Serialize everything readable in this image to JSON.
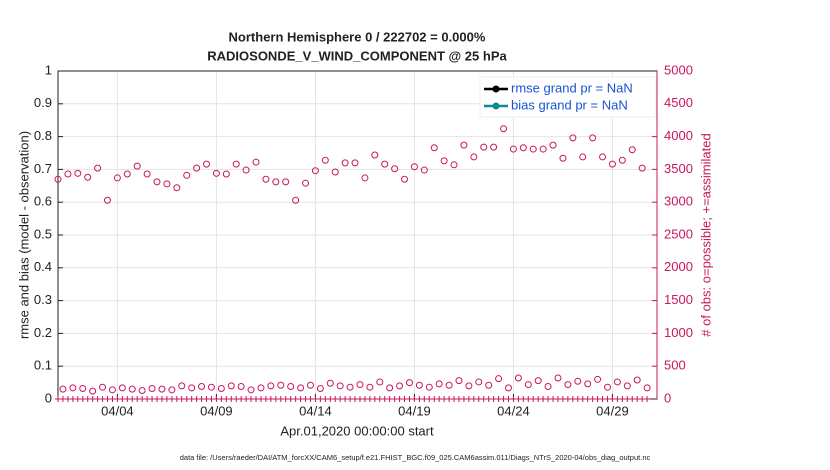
{
  "chart_data": {
    "type": "scatter",
    "title": "Northern Hemisphere 0 / 222702 = 0.000%",
    "subtitle": "RADIOSONDE_V_WIND_COMPONENT @ 25 hPa",
    "ylabel": "rmse and bias (model - observation)",
    "y2label": "# of obs: o=possible; +=assimilated",
    "xlabel": "Apr.01,2020 00:00:00 start",
    "footnote": "data file: /Users/raeder/DAI/ATM_forcXX/CAM6_setup/f.e21.FHIST_BGC.f09_025.CAM6assim.011/Diags_NTrS_2020-04/obs_diag_output.nc",
    "legend": [
      {
        "label": "rmse grand pr = NaN",
        "color": "#000000"
      },
      {
        "label": "bias grand pr = NaN",
        "color": "#108a8a"
      }
    ],
    "grid": true,
    "xlim": [
      0,
      30.25
    ],
    "xticks": [
      {
        "value": 3,
        "label": "04/04"
      },
      {
        "value": 8,
        "label": "04/09"
      },
      {
        "value": 13,
        "label": "04/14"
      },
      {
        "value": 18,
        "label": "04/19"
      },
      {
        "value": 23,
        "label": "04/24"
      },
      {
        "value": 28,
        "label": "04/29"
      }
    ],
    "ylim": [
      0,
      1
    ],
    "yticks": [
      0,
      0.1,
      0.2,
      0.3,
      0.4,
      0.5,
      0.6,
      0.7,
      0.8,
      0.9,
      1
    ],
    "y2lim": [
      0,
      5000
    ],
    "y2ticks": [
      0,
      500,
      1000,
      1500,
      2000,
      2500,
      3000,
      3500,
      4000,
      4500,
      5000
    ],
    "y2color": "#c8175d",
    "x": [
      0,
      0.25,
      0.5,
      0.75,
      1,
      1.25,
      1.5,
      1.75,
      2,
      2.25,
      2.5,
      2.75,
      3,
      3.25,
      3.5,
      3.75,
      4,
      4.25,
      4.5,
      4.75,
      5,
      5.25,
      5.5,
      5.75,
      6,
      6.25,
      6.5,
      6.75,
      7,
      7.25,
      7.5,
      7.75,
      8,
      8.25,
      8.5,
      8.75,
      9,
      9.25,
      9.5,
      9.75,
      10,
      10.25,
      10.5,
      10.75,
      11,
      11.25,
      11.5,
      11.75,
      12,
      12.25,
      12.5,
      12.75,
      13,
      13.25,
      13.5,
      13.75,
      14,
      14.25,
      14.5,
      14.75,
      15,
      15.25,
      15.5,
      15.75,
      16,
      16.25,
      16.5,
      16.75,
      17,
      17.25,
      17.5,
      17.75,
      18,
      18.25,
      18.5,
      18.75,
      19,
      19.25,
      19.5,
      19.75,
      20,
      20.25,
      20.5,
      20.75,
      21,
      21.25,
      21.5,
      21.75,
      22,
      22.25,
      22.5,
      22.75,
      23,
      23.25,
      23.5,
      23.75,
      24,
      24.25,
      24.5,
      24.75,
      25,
      25.25,
      25.5,
      25.75,
      26,
      26.25,
      26.5,
      26.75,
      27,
      27.25,
      27.5,
      27.75,
      28,
      28.25,
      28.5,
      28.75,
      29,
      29.25,
      29.5,
      29.75
    ],
    "series": [
      {
        "marker": "circle",
        "color": "#c8175d",
        "axis": "y2",
        "values": [
          3350,
          150,
          3430,
          170,
          3440,
          160,
          3380,
          120,
          3520,
          180,
          3030,
          140,
          3370,
          170,
          3430,
          150,
          3550,
          130,
          3430,
          160,
          3310,
          150,
          3280,
          140,
          3220,
          200,
          3410,
          170,
          3520,
          190,
          3580,
          180,
          3440,
          160,
          3430,
          200,
          3580,
          190,
          3490,
          140,
          3610,
          170,
          3350,
          200,
          3310,
          210,
          3310,
          190,
          3030,
          170,
          3290,
          210,
          3480,
          160,
          3640,
          240,
          3460,
          200,
          3600,
          180,
          3600,
          220,
          3370,
          180,
          3720,
          260,
          3580,
          170,
          3510,
          200,
          3350,
          250,
          3540,
          210,
          3490,
          180,
          3830,
          230,
          3630,
          210,
          3570,
          280,
          3870,
          200,
          3690,
          260,
          3840,
          210,
          3840,
          310,
          4120,
          170,
          3810,
          320,
          3830,
          220,
          3810,
          280,
          3810,
          190,
          3870,
          320,
          3670,
          220,
          3980,
          270,
          3690,
          230,
          3980,
          300,
          3690,
          180,
          3580,
          260,
          3640,
          200,
          3800,
          290,
          3520,
          170
        ]
      },
      {
        "marker": "plus",
        "color": "#c8175d",
        "axis": "y2",
        "values": [
          0,
          0,
          0,
          0,
          0,
          0,
          0,
          0,
          0,
          0,
          0,
          0,
          0,
          0,
          0,
          0,
          0,
          0,
          0,
          0,
          0,
          0,
          0,
          0,
          0,
          0,
          0,
          0,
          0,
          0,
          0,
          0,
          0,
          0,
          0,
          0,
          0,
          0,
          0,
          0,
          0,
          0,
          0,
          0,
          0,
          0,
          0,
          0,
          0,
          0,
          0,
          0,
          0,
          0,
          0,
          0,
          0,
          0,
          0,
          0,
          0,
          0,
          0,
          0,
          0,
          0,
          0,
          0,
          0,
          0,
          0,
          0,
          0,
          0,
          0,
          0,
          0,
          0,
          0,
          0,
          0,
          0,
          0,
          0,
          0,
          0,
          0,
          0,
          0,
          0,
          0,
          0,
          0,
          0,
          0,
          0,
          0,
          0,
          0,
          0,
          0,
          0,
          0,
          0,
          0,
          0,
          0,
          0,
          0,
          0,
          0,
          0,
          0,
          0,
          0,
          0,
          0,
          0,
          0,
          0
        ]
      }
    ]
  }
}
